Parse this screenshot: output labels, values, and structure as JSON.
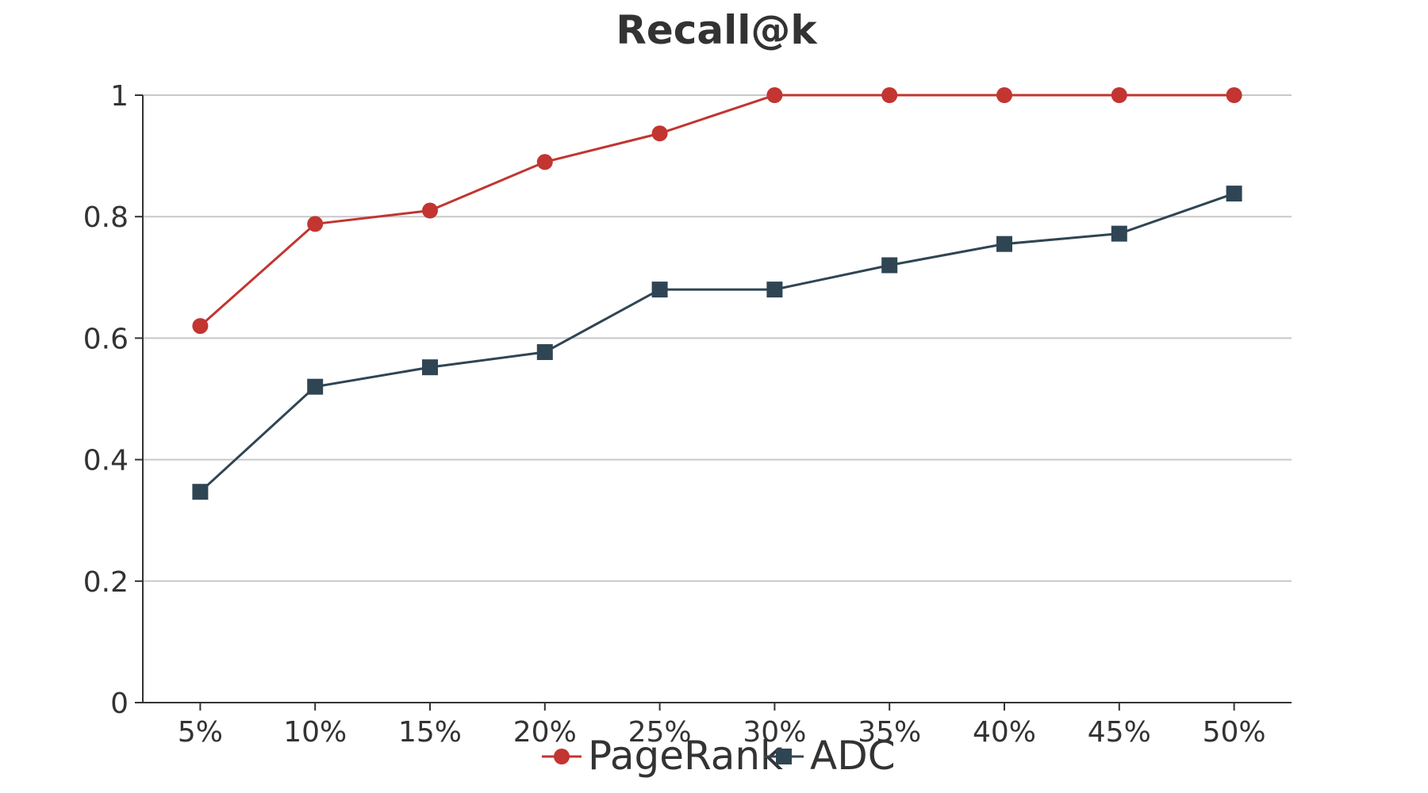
{
  "chart_data": {
    "type": "line",
    "title": "Recall@k",
    "xlabel": "",
    "ylabel": "",
    "categories": [
      "5%",
      "10%",
      "15%",
      "20%",
      "25%",
      "30%",
      "35%",
      "40%",
      "45%",
      "50%"
    ],
    "ylim": [
      0,
      1
    ],
    "yticks": [
      0,
      0.2,
      0.4,
      0.6,
      0.8,
      1
    ],
    "ytick_labels": [
      "0",
      "0.2",
      "0.4",
      "0.6",
      "0.8",
      "1"
    ],
    "grid": true,
    "legend_position": "bottom",
    "series": [
      {
        "name": "PageRank",
        "color": "#c23531",
        "marker": "circle",
        "values": [
          0.62,
          0.788,
          0.81,
          0.89,
          0.937,
          1,
          1,
          1,
          1,
          1
        ]
      },
      {
        "name": "ADC",
        "color": "#2f4554",
        "marker": "square",
        "values": [
          0.347,
          0.52,
          0.552,
          0.577,
          0.68,
          0.68,
          0.72,
          0.755,
          0.772,
          0.838
        ]
      }
    ]
  }
}
